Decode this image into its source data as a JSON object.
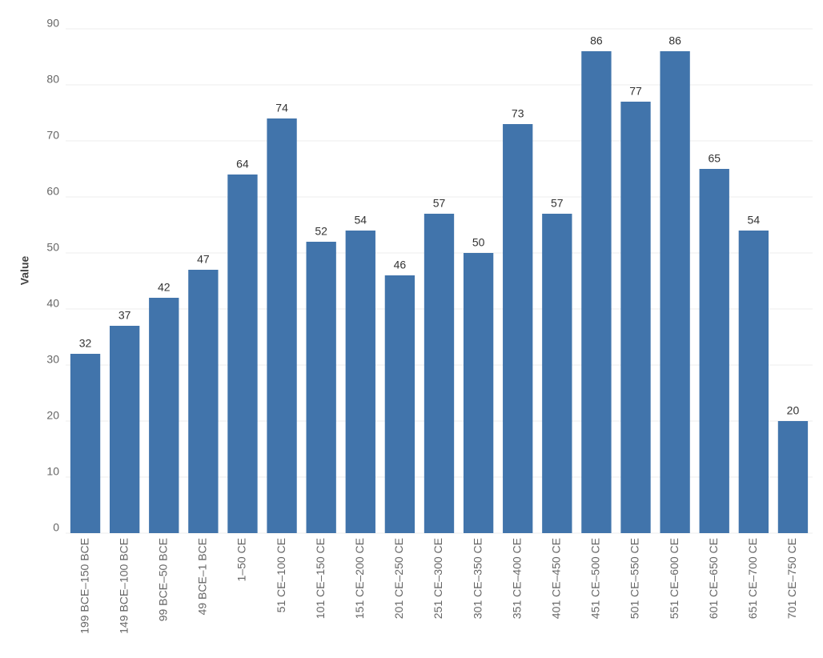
{
  "chart_data": {
    "type": "bar",
    "y_label": "Value",
    "categories": [
      "199 BCE–150 BCE",
      "149 BCE–100 BCE",
      "99 BCE–50 BCE",
      "49 BCE–1 BCE",
      "1–50 CE",
      "51 CE–100 CE",
      "101 CE–150 CE",
      "151 CE–200 CE",
      "201 CE–250 CE",
      "251 CE–300 CE",
      "301 CE–350 CE",
      "351 CE–400 CE",
      "401 CE–450 CE",
      "451 CE–500 CE",
      "501 CE–550 CE",
      "551 CE–600 CE",
      "601 CE–650 CE",
      "651 CE–700 CE",
      "701 CE–750 CE"
    ],
    "values": [
      32,
      37,
      42,
      47,
      64,
      74,
      52,
      54,
      46,
      57,
      50,
      73,
      57,
      86,
      77,
      86,
      65,
      54,
      20
    ],
    "color": "#4174ab",
    "ylim": [
      0,
      90
    ],
    "yticks": [
      0,
      10,
      20,
      30,
      40,
      50,
      60,
      70,
      80,
      90
    ],
    "grid": true
  }
}
